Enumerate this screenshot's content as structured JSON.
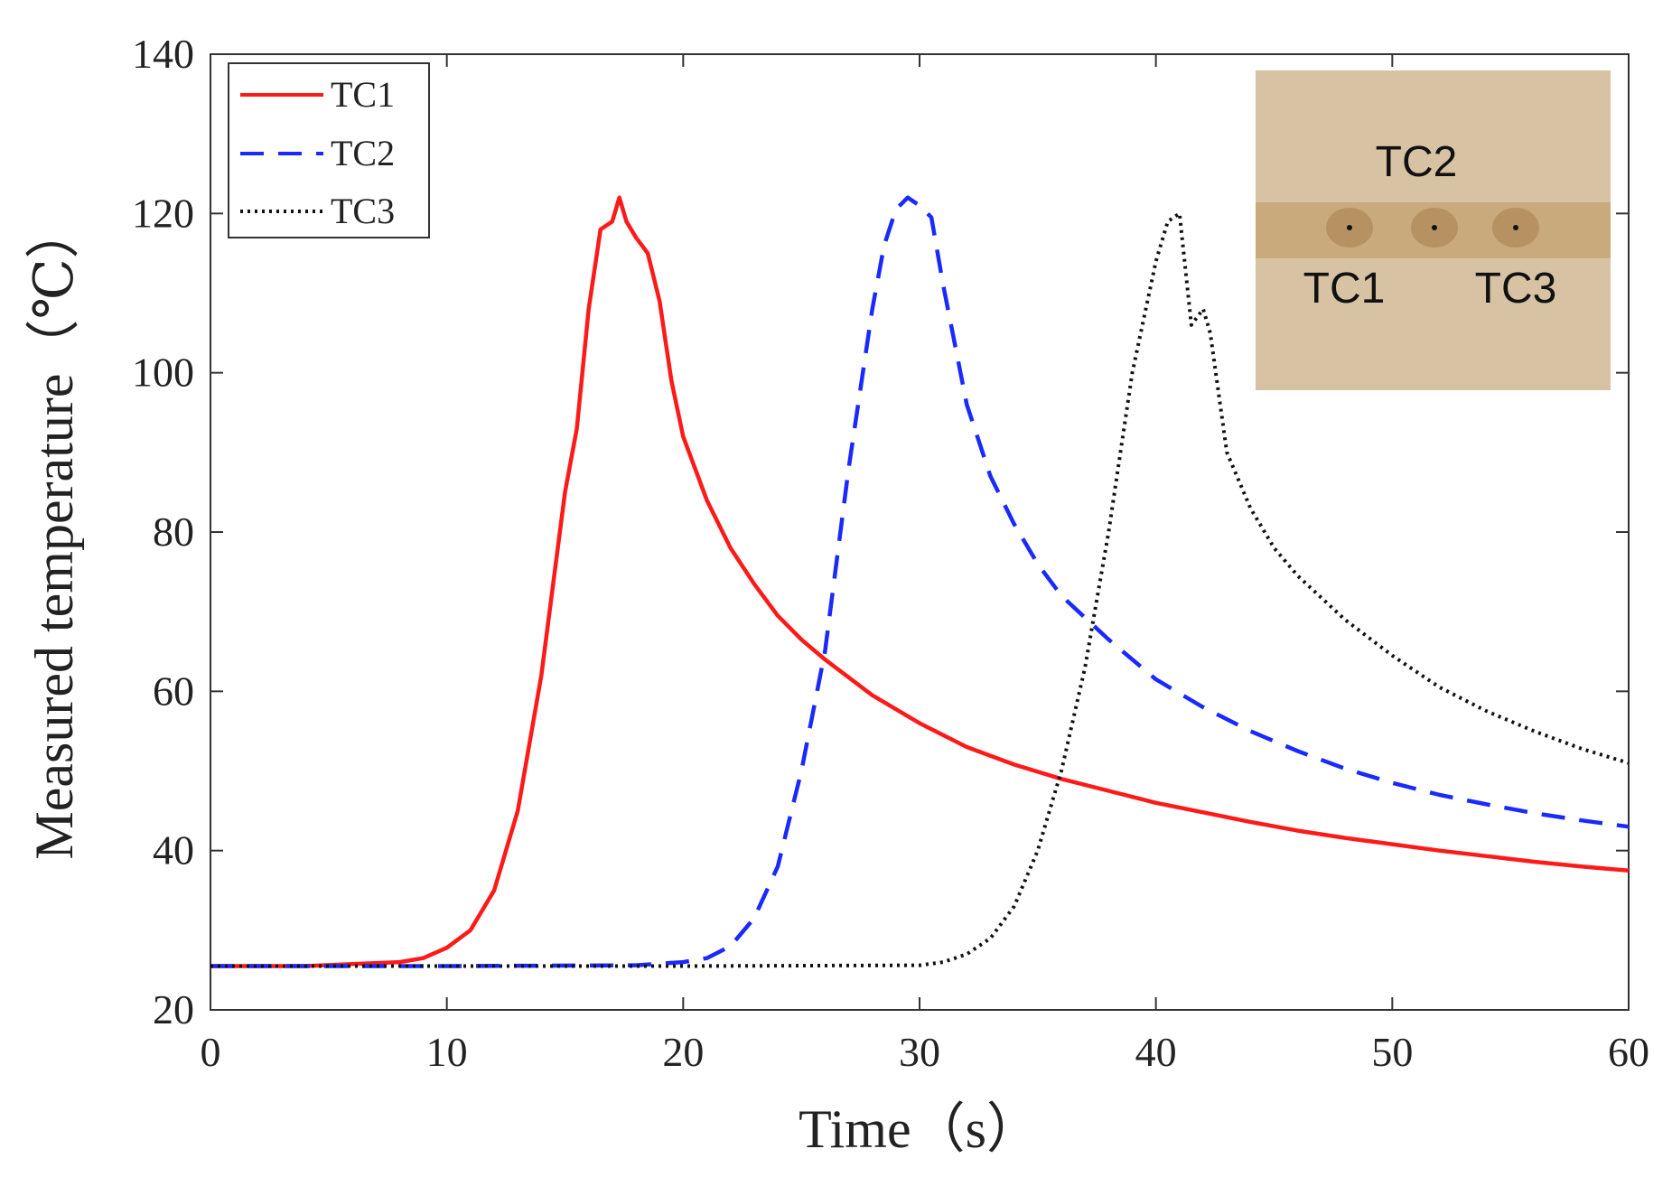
{
  "chart_data": {
    "type": "line",
    "title": "",
    "xlabel": "Time（s）",
    "ylabel": "Measured temperature（℃）",
    "xlim": [
      0,
      60
    ],
    "ylim": [
      20,
      140
    ],
    "xticks": [
      0,
      10,
      20,
      30,
      40,
      50,
      60
    ],
    "yticks": [
      20,
      40,
      60,
      80,
      100,
      120,
      140
    ],
    "grid": false,
    "legend_position": "top-left",
    "series": [
      {
        "name": "TC1",
        "color": "#ff1a1a",
        "style": "solid",
        "x": [
          0,
          4,
          8,
          9,
          10,
          11,
          12,
          13,
          14,
          15,
          15.5,
          16,
          16.5,
          17,
          17.3,
          17.6,
          18,
          18.5,
          19,
          19.5,
          20,
          21,
          22,
          23,
          24,
          25,
          26,
          28,
          30,
          32,
          34,
          36,
          38,
          40,
          42,
          44,
          46,
          48,
          50,
          52,
          54,
          56,
          58,
          60
        ],
        "y": [
          25.5,
          25.5,
          26,
          26.5,
          27.8,
          30,
          35,
          45,
          62,
          85,
          93,
          108,
          118,
          119,
          122,
          119,
          117,
          115,
          109,
          99,
          92,
          84,
          78,
          73.5,
          69.5,
          66.5,
          64,
          59.5,
          56,
          53,
          50.8,
          49,
          47.5,
          46,
          44.8,
          43.6,
          42.5,
          41.6,
          40.8,
          40,
          39.3,
          38.6,
          38,
          37.5
        ]
      },
      {
        "name": "TC2",
        "color": "#1a2aff",
        "style": "dashed",
        "x": [
          0,
          10,
          18,
          20,
          21,
          22,
          23,
          24,
          25,
          26,
          27,
          28,
          28.5,
          29,
          29.5,
          30,
          30.5,
          31,
          32,
          33,
          34,
          35,
          36,
          38,
          40,
          42,
          44,
          46,
          48,
          50,
          52,
          54,
          56,
          58,
          60
        ],
        "y": [
          25.5,
          25.5,
          25.6,
          26,
          26.5,
          28,
          31.5,
          38,
          50,
          65,
          88,
          108,
          116,
          120.5,
          122,
          121,
          119.5,
          111,
          96,
          87,
          81,
          76,
          72,
          66.5,
          61.5,
          58,
          55,
          52.5,
          50.3,
          48.5,
          47,
          45.8,
          44.7,
          43.8,
          43
        ]
      },
      {
        "name": "TC3",
        "color": "#111111",
        "style": "dotted",
        "x": [
          0,
          10,
          20,
          30,
          31,
          32,
          33,
          34,
          35,
          36,
          37,
          38,
          39,
          40,
          40.5,
          41,
          41.5,
          42,
          42.3,
          43,
          44,
          45,
          46,
          48,
          50,
          52,
          54,
          56,
          58,
          60
        ],
        "y": [
          25.5,
          25.5,
          25.5,
          25.6,
          26,
          27,
          29,
          33,
          40,
          50,
          63,
          80,
          100,
          114,
          119,
          120,
          106,
          108,
          105,
          90,
          83,
          78,
          74.5,
          69,
          64.5,
          60.5,
          57.5,
          55,
          52.8,
          51
        ]
      }
    ]
  },
  "inset": {
    "label_top": "TC2",
    "label_left": "TC1",
    "label_right": "TC3",
    "background_color": "#d7c3a3",
    "strip_color": "#c8aa7c"
  }
}
